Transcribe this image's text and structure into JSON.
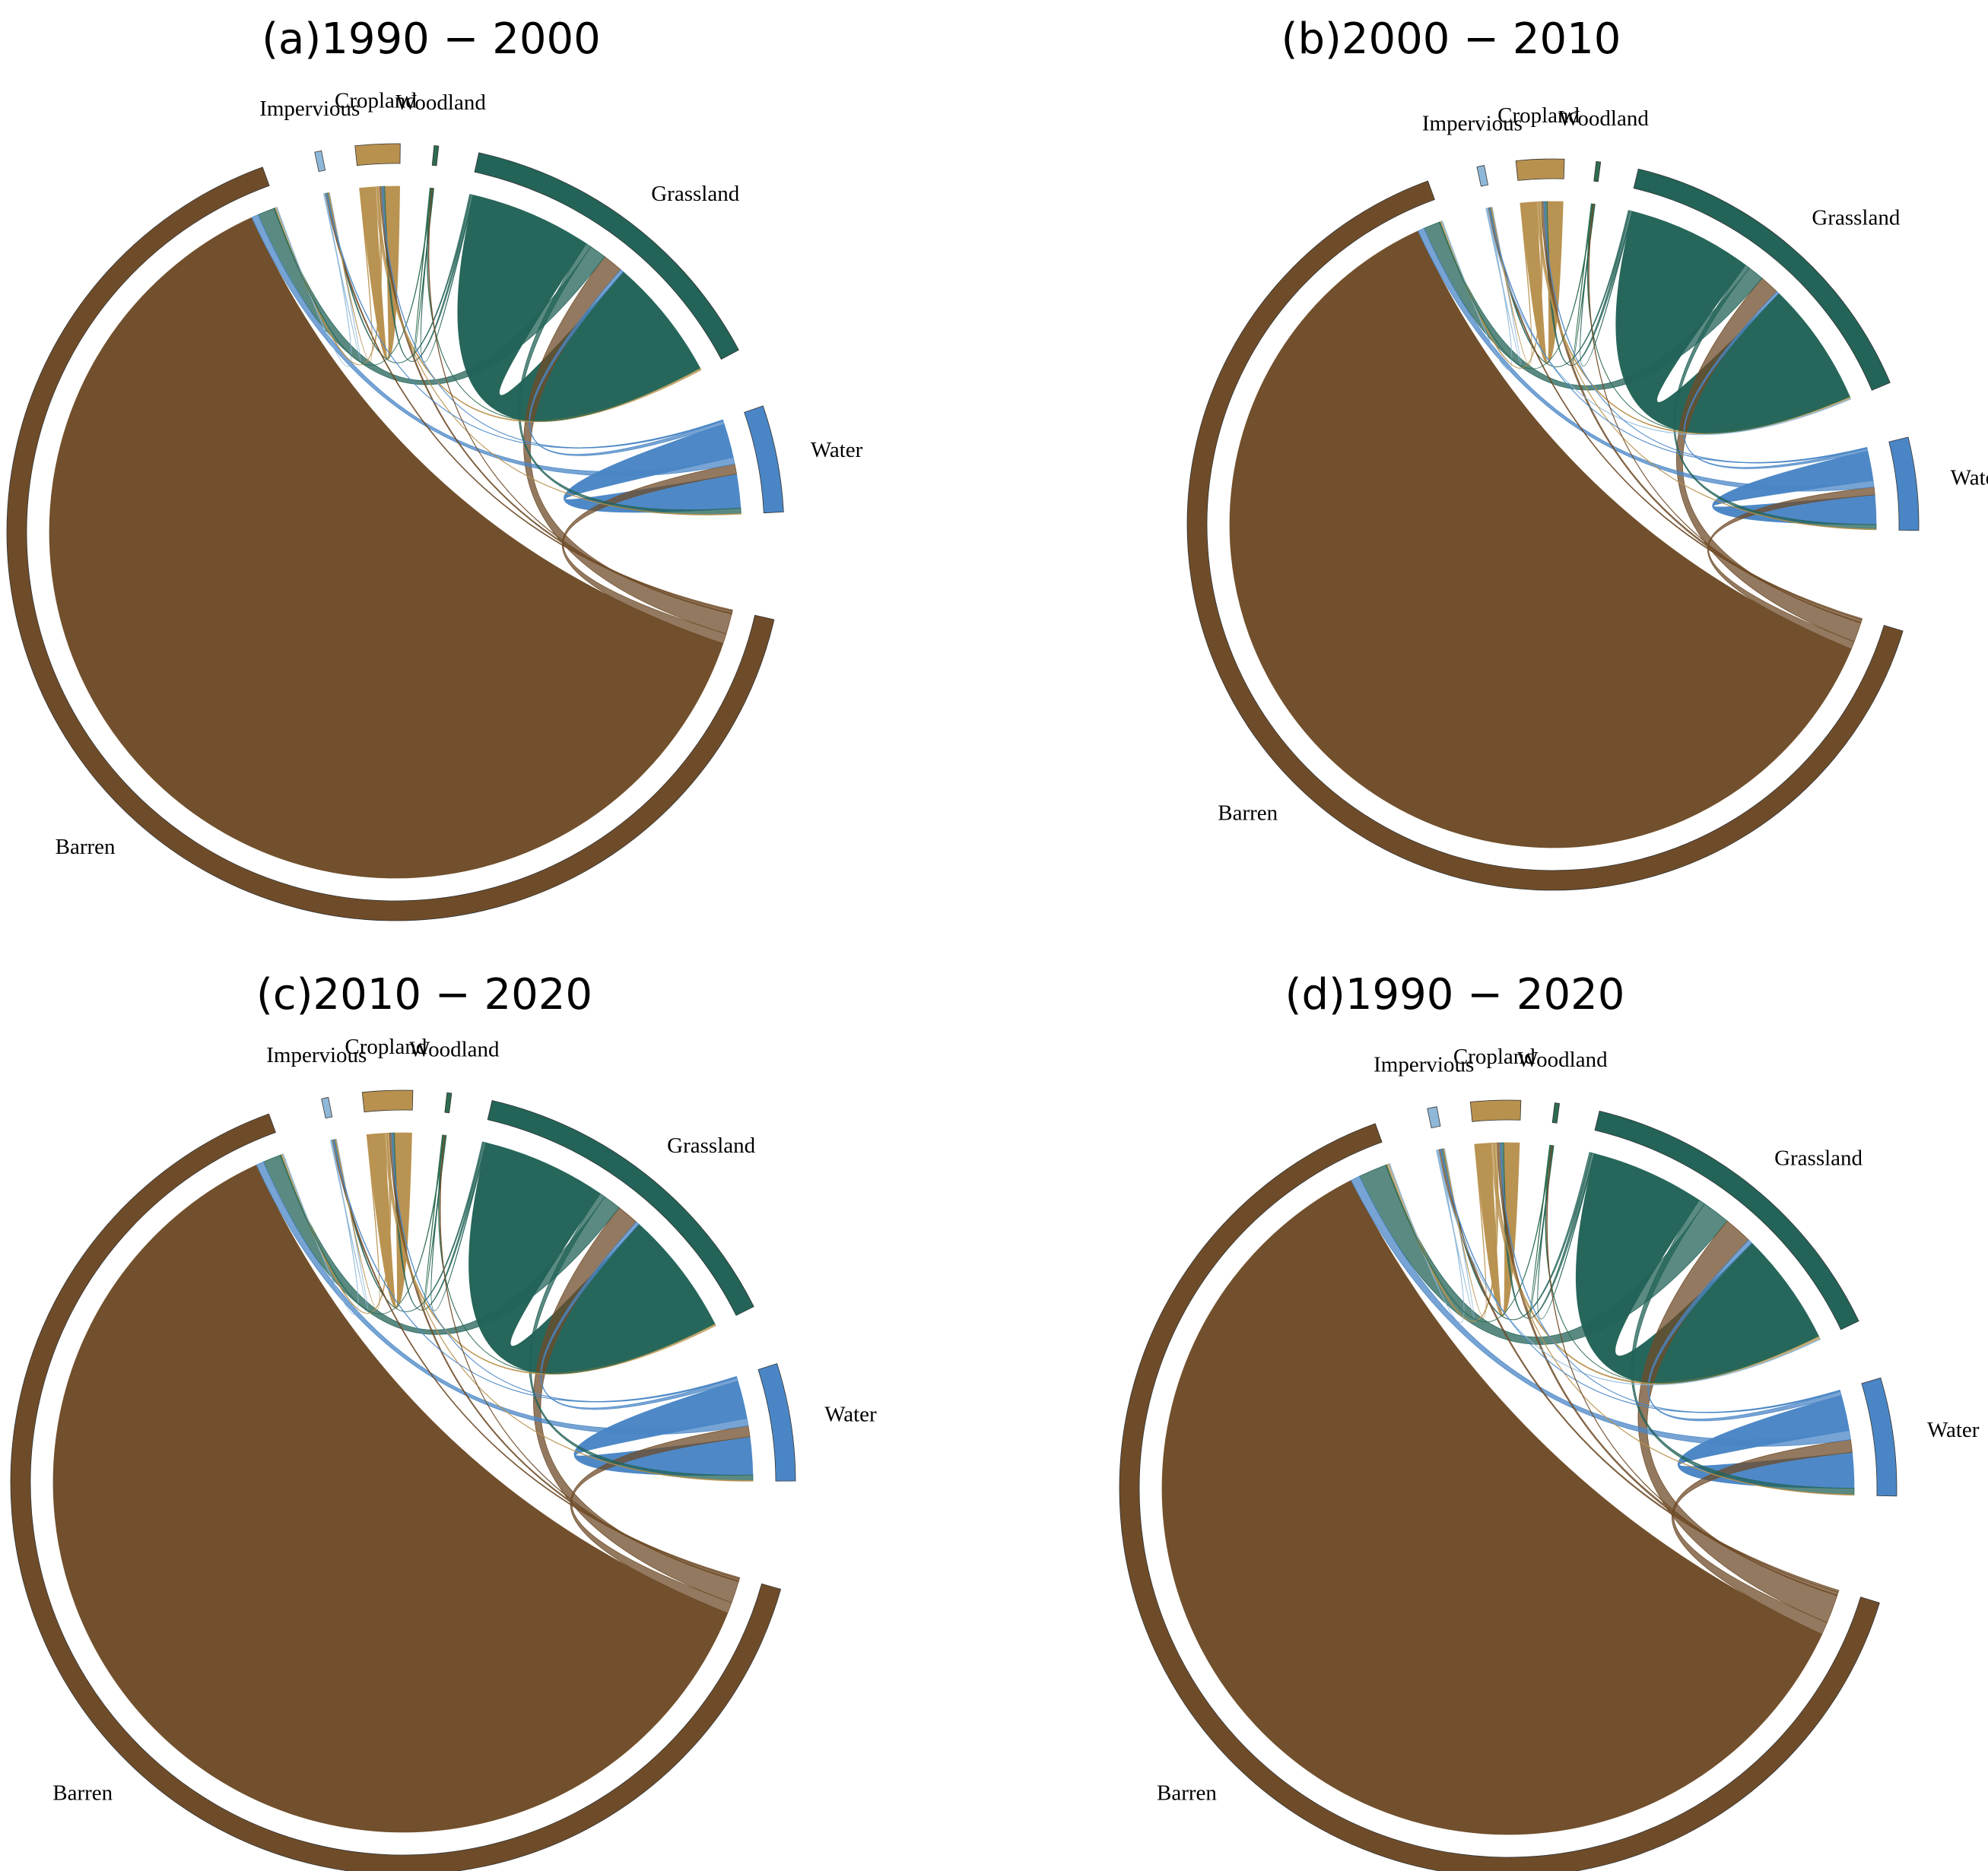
{
  "chart_data": [
    {
      "type": "chord",
      "title": "(a)1990 − 2000",
      "categories": [
        "Impervious",
        "Cropland",
        "Woodland",
        "Grassland",
        "Water",
        "Barren"
      ],
      "colors": [
        "#8fb8d8",
        "#b8914e",
        "#2e6b4f",
        "#236358",
        "#4a86c5",
        "#6f4c29"
      ],
      "matrix": [
        [
          0.1,
          0,
          0,
          0,
          0,
          0.1
        ],
        [
          0.1,
          2.2,
          0,
          0.3,
          0.1,
          0.3
        ],
        [
          0,
          0,
          0.1,
          0.1,
          0,
          0.1
        ],
        [
          0.2,
          0.3,
          0.1,
          18,
          0.8,
          2.5
        ],
        [
          0.1,
          0.1,
          0,
          0.5,
          5,
          1
        ],
        [
          0.2,
          0.3,
          0.1,
          3,
          1.5,
          100
        ]
      ]
    },
    {
      "type": "chord",
      "title": "(b)2000 − 2010",
      "categories": [
        "Impervious",
        "Cropland",
        "Woodland",
        "Grassland",
        "Water",
        "Barren"
      ],
      "colors": [
        "#8fb8d8",
        "#b8914e",
        "#2e6b4f",
        "#236358",
        "#4a86c5",
        "#6f4c29"
      ],
      "matrix": [
        [
          0.1,
          0,
          0,
          0.1,
          0,
          0.1
        ],
        [
          0.1,
          2.4,
          0,
          0.3,
          0.1,
          0.3
        ],
        [
          0,
          0,
          0.1,
          0.1,
          0,
          0.1
        ],
        [
          0.2,
          0.4,
          0.1,
          19,
          0.7,
          2.5
        ],
        [
          0.1,
          0.1,
          0,
          0.4,
          4.5,
          1
        ],
        [
          0.2,
          0.4,
          0.1,
          3,
          1.2,
          95
        ]
      ]
    },
    {
      "type": "chord",
      "title": "(c)2010 − 2020",
      "categories": [
        "Impervious",
        "Cropland",
        "Woodland",
        "Grassland",
        "Water",
        "Barren"
      ],
      "colors": [
        "#8fb8d8",
        "#b8914e",
        "#2e6b4f",
        "#236358",
        "#4a86c5",
        "#6f4c29"
      ],
      "matrix": [
        [
          0.1,
          0,
          0,
          0,
          0,
          0.1
        ],
        [
          0.1,
          2.5,
          0,
          0.3,
          0.1,
          0.3
        ],
        [
          0,
          0,
          0.1,
          0.1,
          0,
          0.1
        ],
        [
          0.2,
          0.3,
          0.1,
          18,
          0.8,
          2.6
        ],
        [
          0.1,
          0.1,
          0,
          0.5,
          5.5,
          1.1
        ],
        [
          0.2,
          0.3,
          0.1,
          3.2,
          1.6,
          98
        ]
      ]
    },
    {
      "type": "chord",
      "title": "(d)1990 − 2020",
      "categories": [
        "Impervious",
        "Cropland",
        "Woodland",
        "Grassland",
        "Water",
        "Barren"
      ],
      "colors": [
        "#8fb8d8",
        "#b8914e",
        "#2e6b4f",
        "#236358",
        "#4a86c5",
        "#6f4c29"
      ],
      "matrix": [
        [
          0.1,
          0,
          0,
          0.1,
          0,
          0.1
        ],
        [
          0.1,
          2.2,
          0,
          0.4,
          0.1,
          0.4
        ],
        [
          0,
          0,
          0.1,
          0.1,
          0,
          0.1
        ],
        [
          0.3,
          0.4,
          0.1,
          16,
          0.9,
          4
        ],
        [
          0.1,
          0.1,
          0,
          0.6,
          5,
          1.3
        ],
        [
          0.3,
          0.4,
          0.1,
          4,
          1.8,
          92
        ]
      ]
    }
  ]
}
